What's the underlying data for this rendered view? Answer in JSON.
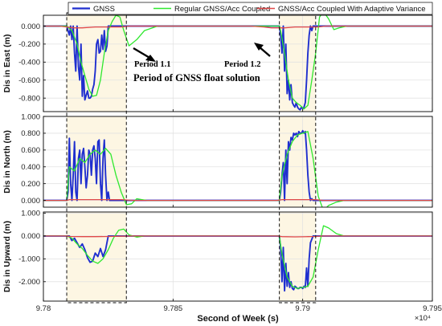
{
  "chart_data": {
    "type": "line",
    "xlabel": "Second of Week (s)",
    "x_multiplier": "×10⁴",
    "x_ticks": [
      "9.78",
      "9.785",
      "9.79",
      "9.795"
    ],
    "xlim": [
      9.78,
      9.795
    ],
    "legend": {
      "placement": "top",
      "entries": [
        {
          "name": "GNSS",
          "color": "#1f2fcf"
        },
        {
          "name": "Regular GNSS/Acc Coupled",
          "color": "#2ee82e"
        },
        {
          "name": "GNSS/Acc Coupled With Adaptive Variance",
          "color": "#e04848"
        }
      ]
    },
    "annotations": {
      "period_1": "Period 1.1",
      "period_2": "Period 1.2",
      "float_solution": "Period of GNSS float solution",
      "float_periods_x": [
        [
          9.7809,
          9.7832
        ],
        [
          9.7891,
          9.7905
        ]
      ]
    },
    "panels": [
      {
        "ylabel": "Dis in East (m)",
        "ylim": [
          -0.95,
          0.12
        ],
        "y_ticks": [
          "0.000",
          "-0.200",
          "-0.400",
          "-0.600",
          "-0.800"
        ],
        "y_tick_values": [
          0,
          -0.2,
          -0.4,
          -0.6,
          -0.8
        ],
        "series": [
          {
            "name": "GNSS",
            "x": [
              9.78,
              9.7808,
              9.7809,
              9.781,
              9.78105,
              9.7811,
              9.78115,
              9.7812,
              9.78125,
              9.7813,
              9.78135,
              9.7814,
              9.78145,
              9.7815,
              9.78155,
              9.7816,
              9.78165,
              9.7817,
              9.78175,
              9.7818,
              9.78185,
              9.7819,
              9.78195,
              9.782,
              9.78205,
              9.7821,
              9.78215,
              9.7822,
              9.78225,
              9.7823,
              9.78235,
              9.7824,
              9.78245,
              9.7825,
              9.7835,
              9.789,
              9.7891,
              9.78915,
              9.7892,
              9.78925,
              9.7893,
              9.78935,
              9.7894,
              9.78945,
              9.7895,
              9.78955,
              9.7896,
              9.78965,
              9.7897,
              9.78975,
              9.7898,
              9.78985,
              9.7899,
              9.78995,
              9.79,
              9.79005,
              9.7901,
              9.79015,
              9.7902,
              9.79025,
              9.7903,
              9.79035,
              9.7904,
              9.79045,
              9.7905,
              9.7906,
              9.795
            ],
            "y": [
              0,
              0,
              0,
              -0.1,
              0,
              -0.15,
              0,
              -0.3,
              -0.5,
              0,
              -0.45,
              -0.6,
              -0.2,
              -0.78,
              -0.55,
              -0.82,
              -0.77,
              -0.72,
              -0.8,
              -0.8,
              -0.78,
              -0.7,
              -0.65,
              -0.5,
              -0.2,
              -0.15,
              -0.3,
              -0.28,
              -0.1,
              -0.26,
              -0.05,
              -0.28,
              -0.22,
              0,
              0,
              0,
              0,
              -0.1,
              -0.3,
              0,
              -0.5,
              -0.2,
              -0.75,
              -0.6,
              -0.82,
              -0.65,
              -0.85,
              -0.88,
              -0.9,
              -0.85,
              -0.9,
              -0.92,
              -0.93,
              -0.9,
              -0.92,
              -0.9,
              -0.85,
              -0.6,
              -0.3,
              -0.1,
              0,
              -0.05,
              0,
              0,
              0,
              0,
              0
            ]
          },
          {
            "name": "Regular GNSS/Acc Coupled",
            "x": [
              9.78,
              9.7808,
              9.7809,
              9.7811,
              9.7813,
              9.78145,
              9.7816,
              9.78175,
              9.7819,
              9.78205,
              9.7822,
              9.78235,
              9.7825,
              9.78265,
              9.7828,
              9.78295,
              9.7831,
              9.7833,
              9.7836,
              9.7839,
              9.7844,
              9.7891,
              9.78915,
              9.7893,
              9.78945,
              9.7896,
              9.78975,
              9.7899,
              9.79005,
              9.7902,
              9.79035,
              9.7905,
              9.79065,
              9.7908,
              9.791,
              9.7912,
              9.7914,
              9.7917,
              9.795
            ],
            "y": [
              0,
              0,
              0,
              -0.05,
              -0.2,
              -0.4,
              -0.55,
              -0.7,
              -0.78,
              -0.77,
              -0.6,
              -0.3,
              -0.05,
              0.05,
              0.12,
              0.1,
              -0.05,
              -0.22,
              -0.15,
              -0.05,
              0,
              0,
              -0.05,
              -0.3,
              -0.6,
              -0.8,
              -0.85,
              -0.88,
              -0.92,
              -0.88,
              -0.6,
              -0.3,
              0.1,
              0.16,
              0.08,
              -0.04,
              -0.02,
              0,
              0
            ]
          },
          {
            "name": "GNSS/Acc Coupled With Adaptive Variance",
            "x": [
              9.78,
              9.7806,
              9.7809,
              9.7812,
              9.7815,
              9.782,
              9.7825,
              9.7828,
              9.783,
              9.7833,
              9.7836,
              9.788,
              9.7885,
              9.7888,
              9.789,
              9.7893,
              9.7897,
              9.7901,
              9.7904,
              9.7906,
              9.7909,
              9.795
            ],
            "y": [
              0,
              0,
              -0.01,
              -0.02,
              -0.02,
              -0.01,
              -0.01,
              -0.01,
              -0.01,
              0,
              0,
              0,
              -0.01,
              -0.02,
              -0.02,
              -0.02,
              -0.01,
              -0.01,
              -0.01,
              -0.01,
              0,
              0
            ]
          }
        ]
      },
      {
        "ylabel": "Dis in North (m)",
        "ylim": [
          -0.08,
          1.0
        ],
        "y_ticks": [
          "1.000",
          "0.800",
          "0.600",
          "0.400",
          "0.200",
          "0.000"
        ],
        "y_tick_values": [
          1,
          0.8,
          0.6,
          0.4,
          0.2,
          0
        ],
        "series": [
          {
            "name": "GNSS",
            "x": [
              9.78,
              9.7809,
              9.78095,
              9.781,
              9.78105,
              9.7811,
              9.78115,
              9.7812,
              9.78125,
              9.7813,
              9.78135,
              9.7814,
              9.78145,
              9.7815,
              9.78155,
              9.7816,
              9.78165,
              9.7817,
              9.78175,
              9.7818,
              9.78185,
              9.7819,
              9.78195,
              9.782,
              9.78205,
              9.7821,
              9.78215,
              9.7822,
              9.78225,
              9.7823,
              9.78235,
              9.7824,
              9.78245,
              9.7825,
              9.78255,
              9.7826,
              9.7835,
              9.7891,
              9.78915,
              9.7892,
              9.78925,
              9.7893,
              9.78935,
              9.7894,
              9.78945,
              9.7895,
              9.78955,
              9.7896,
              9.78965,
              9.7897,
              9.78975,
              9.7898,
              9.78985,
              9.7899,
              9.78995,
              9.79,
              9.79005,
              9.7901,
              9.79015,
              9.7902,
              9.79025,
              9.7903,
              9.79035,
              9.7904,
              9.7905,
              9.795
            ],
            "y": [
              0,
              0,
              0.1,
              0.74,
              0.2,
              0,
              0.3,
              0.7,
              0.1,
              0,
              0.5,
              0.6,
              0.2,
              0.55,
              0.62,
              0.4,
              0.15,
              0.3,
              0.6,
              0.55,
              0.3,
              0.6,
              0.65,
              0.5,
              0.2,
              0.7,
              0.72,
              0.2,
              0,
              0.5,
              0.72,
              0.3,
              0,
              0.1,
              0,
              0,
              0,
              0,
              0.1,
              0.3,
              0.45,
              0,
              0.6,
              0.2,
              0.7,
              0.6,
              0.75,
              0.72,
              0.8,
              0.78,
              0.8,
              0.76,
              0.82,
              0.8,
              0.8,
              0.83,
              0.8,
              0.82,
              0.6,
              0.3,
              0.1,
              0,
              0.02,
              0,
              0,
              0
            ]
          },
          {
            "name": "Regular GNSS/Acc Coupled",
            "x": [
              9.78,
              9.7809,
              9.781,
              9.7812,
              9.7814,
              9.7816,
              9.7818,
              9.782,
              9.7822,
              9.7824,
              9.7826,
              9.7828,
              9.783,
              9.7832,
              9.7834,
              9.7836,
              9.7838,
              9.784,
              9.7843,
              9.7891,
              9.7892,
              9.7894,
              9.7896,
              9.7898,
              9.79,
              9.7902,
              9.7904,
              9.7906,
              9.7908,
              9.791,
              9.7913,
              9.7916,
              9.795
            ],
            "y": [
              0,
              0,
              0.4,
              0.35,
              0.5,
              0.45,
              0.55,
              0.6,
              0.55,
              0.62,
              0.55,
              0.3,
              0.1,
              -0.05,
              -0.04,
              0.02,
              0.01,
              0,
              0,
              0,
              0.3,
              0.55,
              0.7,
              0.78,
              0.8,
              0.82,
              0.5,
              0.05,
              -0.12,
              -0.06,
              -0.02,
              0,
              0
            ]
          },
          {
            "name": "GNSS/Acc Coupled With Adaptive Variance",
            "x": [
              9.78,
              9.7809,
              9.781,
              9.7815,
              9.782,
              9.7825,
              9.783,
              9.7835,
              9.789,
              9.7892,
              9.7897,
              9.7902,
              9.7905,
              9.7908,
              9.795
            ],
            "y": [
              0,
              0,
              0.01,
              0.01,
              0.01,
              0.01,
              0.01,
              0,
              0,
              0.01,
              0.01,
              0.01,
              0.01,
              0,
              0
            ]
          }
        ]
      },
      {
        "ylabel": "Dis in Upward (m)",
        "ylim": [
          -2.85,
          1.05
        ],
        "y_ticks": [
          "1.000",
          "0.000",
          "-1.000",
          "-2.000"
        ],
        "y_tick_values": [
          1,
          0,
          -1,
          -2
        ],
        "series": [
          {
            "name": "GNSS",
            "x": [
              9.78,
              9.7809,
              9.781,
              9.7811,
              9.7812,
              9.7813,
              9.7814,
              9.7815,
              9.7816,
              9.7817,
              9.7818,
              9.7819,
              9.782,
              9.7821,
              9.7822,
              9.7823,
              9.7824,
              9.7825,
              9.7826,
              9.7835,
              9.7891,
              9.78915,
              9.7892,
              9.78925,
              9.7893,
              9.78935,
              9.7894,
              9.78945,
              9.7895,
              9.78955,
              9.7896,
              9.78965,
              9.7897,
              9.78975,
              9.7898,
              9.78985,
              9.7899,
              9.78995,
              9.79,
              9.79005,
              9.7901,
              9.79015,
              9.7902,
              9.79025,
              9.7903,
              9.7904,
              9.7905,
              9.795
            ],
            "y": [
              0,
              0,
              0,
              -0.2,
              -0.1,
              -0.3,
              -0.5,
              -0.35,
              -0.6,
              -0.95,
              -1.15,
              -1.1,
              -0.75,
              -0.9,
              -0.55,
              -0.9,
              -0.6,
              0,
              0,
              0,
              0,
              -0.5,
              -2.0,
              -0.5,
              -2.4,
              -1.2,
              -2.2,
              -1.6,
              -2.25,
              -2.0,
              -2.3,
              -2.35,
              -2.2,
              -2.25,
              -2.3,
              -2.3,
              -2.25,
              -2.25,
              -2.3,
              -2.2,
              -2.25,
              -1.4,
              -2.2,
              -1.0,
              -0.3,
              0,
              0,
              0
            ]
          },
          {
            "name": "Regular GNSS/Acc Coupled",
            "x": [
              9.78,
              9.7809,
              9.7811,
              9.7813,
              9.7815,
              9.7817,
              9.7819,
              9.7821,
              9.7823,
              9.7825,
              9.7827,
              9.7829,
              9.7831,
              9.7833,
              9.7836,
              9.7839,
              9.7891,
              9.7892,
              9.7894,
              9.7896,
              9.7898,
              9.79,
              9.7902,
              9.7904,
              9.7906,
              9.7908,
              9.791,
              9.7913,
              9.7916,
              9.795
            ],
            "y": [
              0,
              0,
              -0.1,
              -0.35,
              -0.55,
              -0.85,
              -1.1,
              -1.2,
              -1.0,
              -0.6,
              -0.1,
              0.25,
              0.3,
              0.05,
              -0.05,
              0,
              0,
              -0.8,
              -1.8,
              -2.2,
              -2.3,
              -2.25,
              -2.2,
              -1.8,
              -0.6,
              0.45,
              0.35,
              0.1,
              0,
              0
            ]
          },
          {
            "name": "GNSS/Acc Coupled With Adaptive Variance",
            "x": [
              9.78,
              9.7809,
              9.781,
              9.7815,
              9.782,
              9.7825,
              9.783,
              9.7835,
              9.789,
              9.7892,
              9.7897,
              9.7902,
              9.7905,
              9.7908,
              9.795
            ],
            "y": [
              0,
              0,
              -0.02,
              -0.03,
              -0.03,
              -0.02,
              -0.01,
              0,
              0,
              -0.03,
              -0.04,
              -0.03,
              -0.02,
              0,
              0
            ]
          }
        ]
      }
    ]
  }
}
